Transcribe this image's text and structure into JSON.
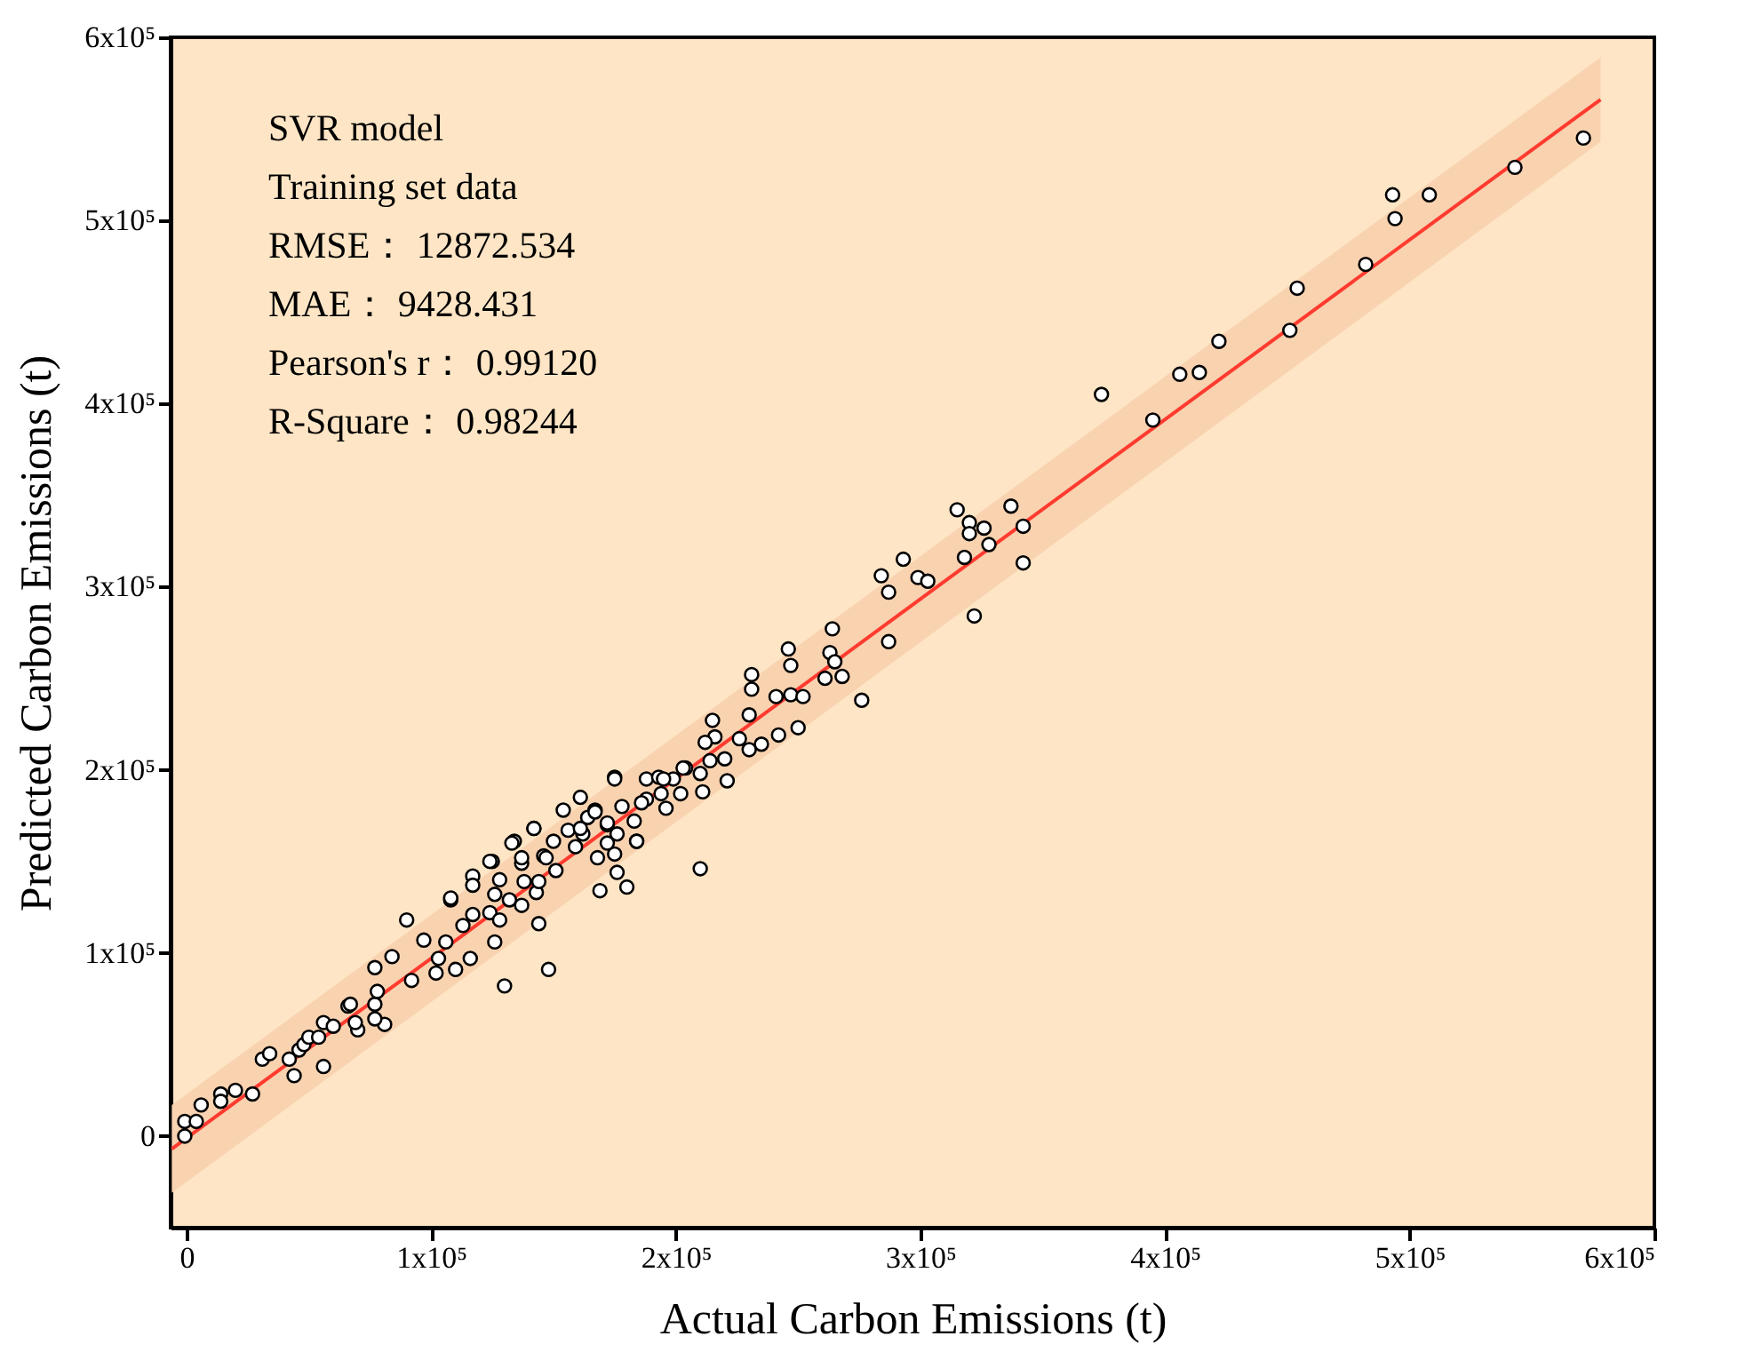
{
  "chart_data": {
    "type": "scatter",
    "xlabel": "Actual Carbon Emissions (t)",
    "ylabel": "Predicted Carbon Emissions (t)",
    "annotations": [
      "SVR model",
      "Training set data",
      "RMSE： 12872.534",
      "MAE： 9428.431",
      "Pearson's r： 0.99120",
      "R-Square： 0.98244"
    ],
    "xlim": [
      -6500,
      600000
    ],
    "ylim": [
      -50000,
      600000
    ],
    "xticks": [
      0,
      {
        "value": 100000,
        "label": "1x10⁵"
      },
      {
        "value": 200000,
        "label": "2x10⁵"
      },
      {
        "value": 300000,
        "label": "3x10⁵"
      },
      {
        "value": 400000,
        "label": "4x10⁵"
      },
      {
        "value": 500000,
        "label": "5x10⁵"
      },
      {
        "value": 600000,
        "label": "6x10⁵"
      }
    ],
    "yticks": [
      0,
      {
        "value": 100000,
        "label": "1x10⁵"
      },
      {
        "value": 200000,
        "label": "2x10⁵"
      },
      {
        "value": 300000,
        "label": "3x10⁵"
      },
      {
        "value": 400000,
        "label": "4x10⁵"
      },
      {
        "value": 500000,
        "label": "5x10⁵"
      },
      {
        "value": 600000,
        "label": "6x10⁵"
      }
    ],
    "grid": false,
    "series": [
      {
        "type": "line",
        "color": "#ff3b2f",
        "line_style": "solid",
        "x": [
          -6000,
          578000
        ],
        "values": [
          -7000,
          566000
        ],
        "lower": [
          -31000,
          543000
        ],
        "upper": [
          17000,
          589000
        ]
      },
      {
        "color": "#ffffff",
        "marker": "circle",
        "x": [
          571000,
          543000,
          508000,
          493000,
          494000,
          482000,
          454000,
          451000,
          422000,
          414000,
          406000,
          395000,
          374000,
          315000,
          337000,
          320000,
          320000,
          326000,
          342000,
          328000,
          318000,
          342000,
          322000,
          284000,
          293000,
          287000,
          299000,
          303000,
          287000,
          264000,
          263000,
          265000,
          261000,
          268000,
          276000,
          246000,
          247000,
          231000,
          231000,
          241000,
          247000,
          252000,
          250000,
          242000,
          230000,
          215000,
          216000,
          212000,
          226000,
          235000,
          230000,
          220000,
          214000,
          210000,
          204000,
          211000,
          221000,
          210000,
          199000,
          196000,
          180000,
          169000,
          176000,
          184000,
          175000,
          175000,
          188000,
          193000,
          183000,
          161000,
          154000,
          142000,
          134000,
          125000,
          117000,
          108000,
          167000,
          172000,
          178000,
          164000,
          156000,
          162000,
          150000,
          146000,
          137000,
          128000,
          138000,
          143000,
          132000,
          172000,
          168000,
          176000,
          188000,
          194000,
          202000,
          130000,
          148000,
          90000,
          144000,
          110000,
          116000,
          102000,
          77000,
          84000,
          92000,
          77000,
          81000,
          70000,
          66000,
          56000,
          56000,
          44000,
          46000,
          31000,
          27000,
          20000,
          14000,
          6000,
          -700,
          -700,
          48000,
          60000,
          67000,
          78000,
          106000,
          97000,
          103000,
          108000,
          117000,
          113000,
          124000,
          126000,
          117000,
          124000,
          133000,
          142000,
          144000,
          137000,
          128000,
          175000,
          184000,
          195000,
          203000,
          172000,
          159000,
          151000,
          126000,
          147000,
          137000,
          161000,
          167000,
          186000,
          50000,
          34000,
          4000,
          14000,
          42000,
          54000,
          69000,
          77000
        ],
        "values": [
          545000,
          529000,
          514000,
          514000,
          501000,
          476000,
          463000,
          440000,
          434000,
          417000,
          416000,
          391000,
          405000,
          342000,
          344000,
          335000,
          329000,
          332000,
          333000,
          323000,
          316000,
          313000,
          284000,
          306000,
          315000,
          297000,
          305000,
          303000,
          270000,
          277000,
          264000,
          259000,
          250000,
          251000,
          238000,
          266000,
          257000,
          252000,
          244000,
          240000,
          241000,
          240000,
          223000,
          219000,
          230000,
          227000,
          218000,
          215000,
          217000,
          214000,
          211000,
          206000,
          205000,
          198000,
          201000,
          188000,
          194000,
          146000,
          195000,
          179000,
          136000,
          134000,
          144000,
          161000,
          154000,
          196000,
          195000,
          196000,
          172000,
          185000,
          178000,
          168000,
          161000,
          150000,
          142000,
          129000,
          178000,
          170000,
          180000,
          174000,
          167000,
          165000,
          161000,
          153000,
          149000,
          140000,
          139000,
          133000,
          129000,
          160000,
          152000,
          165000,
          184000,
          187000,
          187000,
          82000,
          91000,
          118000,
          116000,
          91000,
          97000,
          89000,
          92000,
          98000,
          85000,
          72000,
          61000,
          58000,
          71000,
          62000,
          38000,
          33000,
          47000,
          42000,
          23000,
          25000,
          23000,
          17000,
          8000,
          0,
          50000,
          60000,
          72000,
          79000,
          106000,
          107000,
          97000,
          130000,
          121000,
          115000,
          122000,
          106000,
          137000,
          150000,
          160000,
          168000,
          139000,
          126000,
          118000,
          195000,
          161000,
          195000,
          201000,
          171000,
          158000,
          145000,
          132000,
          152000,
          152000,
          168000,
          177000,
          182000,
          54000,
          45000,
          8000,
          19000,
          42000,
          54000,
          62000,
          64000
        ]
      }
    ]
  }
}
